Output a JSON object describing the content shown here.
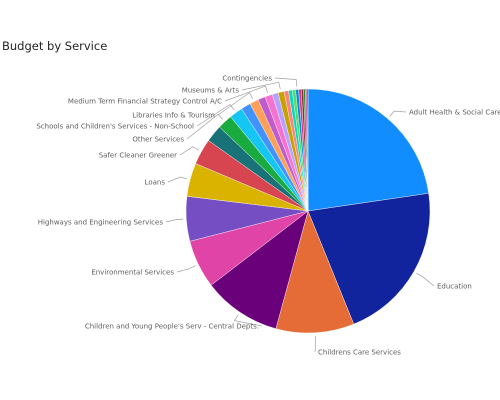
{
  "chart_data": {
    "type": "pie",
    "title": "Budget by Service",
    "legend": "none",
    "slices": [
      {
        "label": "Adult Health & Social Care",
        "value": 23.0,
        "color": "#118DFF"
      },
      {
        "label": "Education",
        "value": 21.5,
        "color": "#12239E"
      },
      {
        "label": "Childrens Care Services",
        "value": 10.5,
        "color": "#E66C37"
      },
      {
        "label": "Children and Young People's Serv - Central Depts.",
        "value": 10.5,
        "color": "#6B007B"
      },
      {
        "label": "Environmental Services",
        "value": 6.5,
        "color": "#E044A7"
      },
      {
        "label": "Highways and Engineering Services",
        "value": 6.0,
        "color": "#744EC2"
      },
      {
        "label": "Loans",
        "value": 4.5,
        "color": "#D9B300"
      },
      {
        "label": "Safer Cleaner Greener",
        "value": 3.5,
        "color": "#D64550"
      },
      {
        "label": "",
        "value": 2.3,
        "color": "#197278"
      },
      {
        "label": "Other Services",
        "value": 2.0,
        "color": "#1AAB40"
      },
      {
        "label": "Schools and Children's Services - Non-School",
        "value": 1.8,
        "color": "#15C6F4"
      },
      {
        "label": "",
        "value": 1.3,
        "color": "#4092FF"
      },
      {
        "label": "Libraries Info & Tourism",
        "value": 1.2,
        "color": "#FFA058"
      },
      {
        "label": "",
        "value": 1.0,
        "color": "#BE5DC9"
      },
      {
        "label": "Medium Term Financial Strategy Control A/C",
        "value": 1.0,
        "color": "#F472D0"
      },
      {
        "label": "",
        "value": 0.8,
        "color": "#B5A1FF"
      },
      {
        "label": "Museums & Arts",
        "value": 0.8,
        "color": "#C4A200"
      },
      {
        "label": "",
        "value": 0.6,
        "color": "#FF8080"
      },
      {
        "label": "",
        "value": 0.5,
        "color": "#00DBBC"
      },
      {
        "label": "",
        "value": 0.45,
        "color": "#5BD667"
      },
      {
        "label": "Contingencies",
        "value": 0.4,
        "color": "#0091D5"
      },
      {
        "label": "",
        "value": 0.35,
        "color": "#E3348C"
      },
      {
        "label": "",
        "value": 0.3,
        "color": "#7F312F"
      },
      {
        "label": "",
        "value": 0.25,
        "color": "#2C8C36"
      },
      {
        "label": "",
        "value": 0.2,
        "color": "#BD3B85"
      },
      {
        "label": "",
        "value": 0.15,
        "color": "#4F4F4F"
      }
    ]
  }
}
